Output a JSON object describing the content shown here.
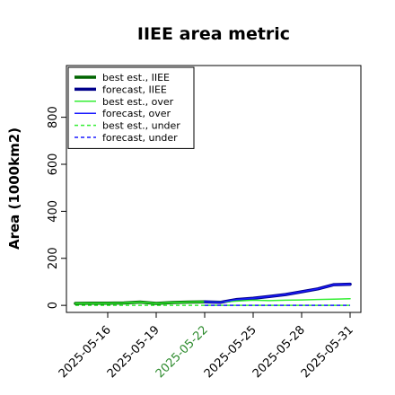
{
  "chart_data": {
    "type": "line",
    "title": "IIEE area metric",
    "ylabel": "Area (1000km2)",
    "xlabel": "",
    "ylim": [
      -30,
      1020
    ],
    "yticks": [
      0,
      200,
      400,
      600,
      800
    ],
    "x": [
      "2025-05-14",
      "2025-05-15",
      "2025-05-16",
      "2025-05-17",
      "2025-05-18",
      "2025-05-19",
      "2025-05-20",
      "2025-05-21",
      "2025-05-22",
      "2025-05-23",
      "2025-05-24",
      "2025-05-25",
      "2025-05-26",
      "2025-05-27",
      "2025-05-28",
      "2025-05-29",
      "2025-05-30",
      "2025-05-31"
    ],
    "xticks": [
      {
        "label": "2025-05-16",
        "color": "#000000"
      },
      {
        "label": "2025-05-19",
        "color": "#000000"
      },
      {
        "label": "2025-05-22",
        "color": "#2e8b2e"
      },
      {
        "label": "2025-05-25",
        "color": "#000000"
      },
      {
        "label": "2025-05-28",
        "color": "#000000"
      },
      {
        "label": "2025-05-31",
        "color": "#000000"
      }
    ],
    "legend_position": "top-left",
    "series": [
      {
        "name": "best est., IIEE",
        "color": "#006400",
        "width": 3.5,
        "dash": "",
        "values": [
          8,
          9,
          9,
          10,
          14,
          8,
          12,
          14,
          15,
          null,
          null,
          null,
          null,
          null,
          null,
          null,
          null,
          null
        ]
      },
      {
        "name": "forecast, IIEE",
        "color": "#00008b",
        "width": 3.5,
        "dash": "",
        "values": [
          null,
          null,
          null,
          null,
          null,
          null,
          null,
          null,
          15,
          13,
          25,
          30,
          38,
          46,
          58,
          70,
          88,
          90
        ]
      },
      {
        "name": "best est., over",
        "color": "#33ee33",
        "width": 1.5,
        "dash": "",
        "values": [
          8,
          9,
          9,
          10,
          14,
          8,
          12,
          14,
          15,
          14,
          18,
          22,
          20,
          22,
          23,
          25,
          26,
          28
        ]
      },
      {
        "name": "forecast, over",
        "color": "#1a1aff",
        "width": 1.5,
        "dash": "",
        "values": [
          null,
          null,
          null,
          null,
          null,
          null,
          null,
          null,
          15,
          13,
          25,
          30,
          38,
          46,
          58,
          70,
          88,
          90
        ]
      },
      {
        "name": "best est., under",
        "color": "#33ee33",
        "width": 1.5,
        "dash": "4,3",
        "values": [
          0,
          0,
          0,
          0,
          0,
          0,
          0,
          0,
          0,
          0,
          0,
          0,
          0,
          0,
          0,
          0,
          0,
          0
        ]
      },
      {
        "name": "forecast, under",
        "color": "#1a1aff",
        "width": 1.5,
        "dash": "4,3",
        "values": [
          null,
          null,
          null,
          null,
          null,
          null,
          null,
          null,
          0,
          0,
          0,
          0,
          0,
          0,
          0,
          0,
          0,
          0
        ]
      }
    ]
  }
}
